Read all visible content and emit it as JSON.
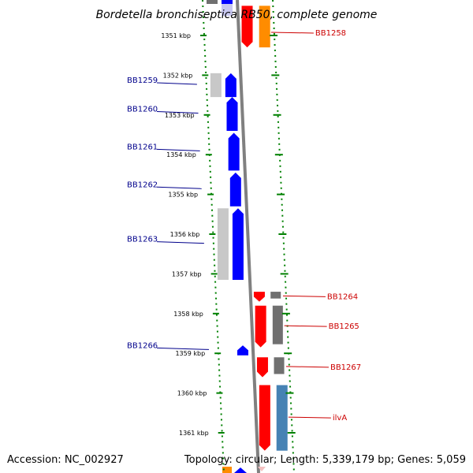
{
  "title": "Bordetella bronchiseptica RB50, complete genome",
  "footer": {
    "accession": "Accession: NC_002927",
    "summary": "Topology: circular; Length: 5,339,179 bp; Genes: 5,059"
  },
  "map": {
    "kbp_range": [
      1350.55,
      1361.55
    ],
    "ticks": [
      "1351 kbp",
      "1352 kbp",
      "1353 kbp",
      "1354 kbp",
      "1355 kbp",
      "1356 kbp",
      "1357 kbp",
      "1358 kbp",
      "1359 kbp",
      "1360 kbp",
      "1361 kbp"
    ],
    "colors": {
      "reverse_cds": "#0000ff",
      "forward_cds": "#ff0000",
      "gene_feature": "#707070",
      "gene_feature_light": "#c8c8c8",
      "orange_feature": "#ff8c00",
      "steelblue_feature": "#4682b4",
      "backbone": "#808080",
      "tick_dots": "#008000",
      "reverse_label": "#00008b",
      "forward_label": "#cc0000"
    }
  },
  "genes_reverse": [
    {
      "label": "BB1259",
      "start": 1351.95,
      "end": 1352.55
    },
    {
      "label": "BB1260",
      "start": 1352.55,
      "end": 1353.4
    },
    {
      "label": "BB1261",
      "start": 1353.45,
      "end": 1354.4
    },
    {
      "label": "BB1262",
      "start": 1354.45,
      "end": 1355.3
    },
    {
      "label": "BB1263",
      "start": 1355.35,
      "end": 1357.15
    },
    {
      "label": "BB1266",
      "start": 1358.8,
      "end": 1359.05
    }
  ],
  "genes_forward": [
    {
      "label": "BB1258",
      "start": 1350.65,
      "end": 1351.3
    },
    {
      "label": "BB1264",
      "start": 1357.45,
      "end": 1357.7
    },
    {
      "label": "BB1265",
      "start": 1357.8,
      "end": 1358.85
    },
    {
      "label": "BB1267",
      "start": 1359.1,
      "end": 1359.6
    },
    {
      "label": "ilvA",
      "start": 1359.8,
      "end": 1361.45
    }
  ]
}
